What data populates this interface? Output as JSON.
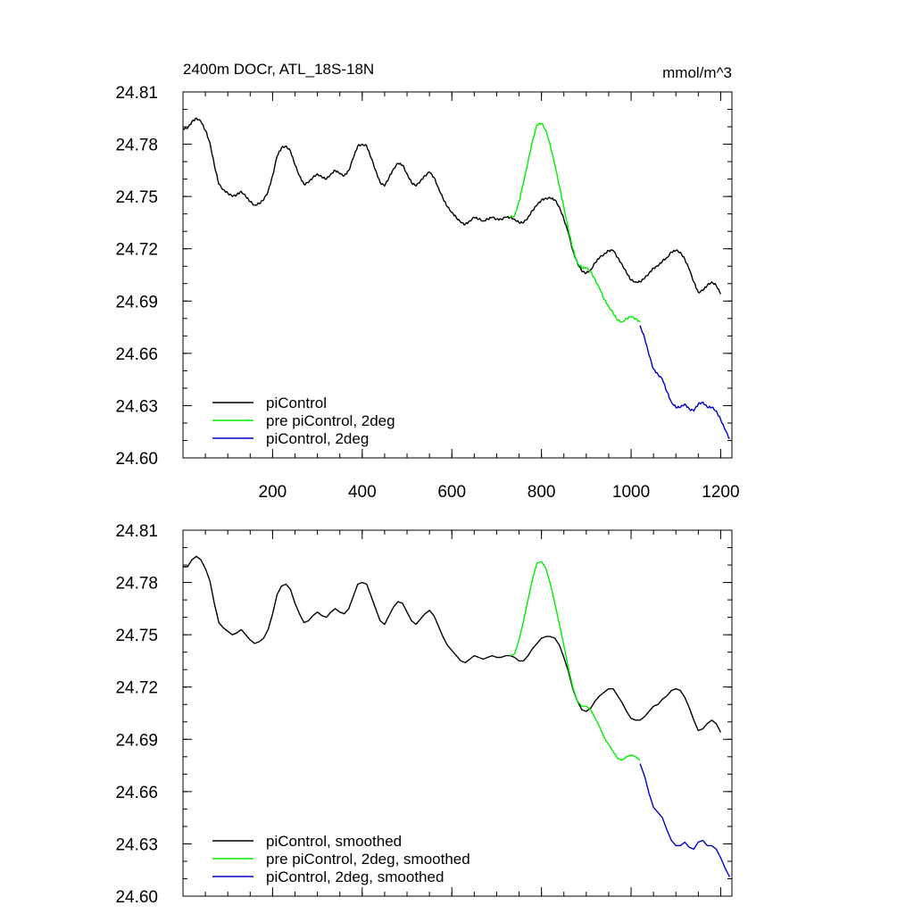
{
  "figure": {
    "title": "2400m DOCr, ATL_18S-18N",
    "units": "mmol/m^3"
  },
  "chart_data": [
    {
      "type": "line",
      "panel": "top",
      "title": "2400m DOCr, ATL_18S-18N",
      "units": "mmol/m^3",
      "xlim": [
        0,
        1225
      ],
      "ylim": [
        24.6,
        24.81
      ],
      "xticks": [
        200,
        400,
        600,
        800,
        1000,
        1200
      ],
      "yticks": [
        24.6,
        24.63,
        24.66,
        24.69,
        24.72,
        24.75,
        24.78,
        24.81
      ],
      "ytick_labels": [
        "24.60",
        "24.63",
        "24.66",
        "24.69",
        "24.72",
        "24.75",
        "24.78",
        "24.81"
      ],
      "xtick_labels": [
        "200",
        "400",
        "600",
        "800",
        "1000",
        "1200"
      ],
      "show_xtick_labels": true,
      "legend": {
        "placement": "bottom-left"
      },
      "series": [
        {
          "name": "piControl",
          "color": "#000000",
          "x": [
            0,
            10,
            20,
            30,
            40,
            50,
            60,
            70,
            80,
            90,
            100,
            110,
            120,
            130,
            140,
            150,
            160,
            170,
            180,
            190,
            200,
            210,
            220,
            230,
            240,
            250,
            260,
            270,
            280,
            290,
            300,
            310,
            320,
            330,
            340,
            350,
            360,
            370,
            380,
            390,
            400,
            410,
            420,
            430,
            440,
            450,
            460,
            470,
            480,
            490,
            500,
            510,
            520,
            530,
            540,
            550,
            560,
            570,
            580,
            590,
            600,
            610,
            620,
            630,
            640,
            650,
            660,
            670,
            680,
            690,
            700,
            710,
            720,
            730,
            740,
            750,
            760,
            770,
            780,
            790,
            800,
            810,
            820,
            830,
            840,
            850,
            860,
            870,
            880,
            890,
            900,
            910,
            920,
            930,
            940,
            950,
            960,
            970,
            980,
            990,
            1000,
            1010,
            1020,
            1030,
            1040,
            1050,
            1060,
            1070,
            1080,
            1090,
            1100,
            1110,
            1120,
            1130,
            1140,
            1150,
            1160,
            1170,
            1180,
            1190,
            1200
          ],
          "values": [
            24.789,
            24.789,
            24.793,
            24.795,
            24.793,
            24.788,
            24.781,
            24.768,
            24.757,
            24.754,
            24.752,
            24.75,
            24.751,
            24.753,
            24.75,
            24.747,
            24.745,
            24.746,
            24.748,
            24.753,
            24.762,
            24.773,
            24.778,
            24.779,
            24.776,
            24.768,
            24.762,
            24.757,
            24.758,
            24.761,
            24.763,
            24.761,
            24.76,
            24.763,
            24.765,
            24.763,
            24.762,
            24.765,
            24.772,
            24.779,
            24.78,
            24.779,
            24.772,
            24.765,
            24.758,
            24.756,
            24.761,
            24.766,
            24.769,
            24.768,
            24.763,
            24.758,
            24.756,
            24.759,
            24.762,
            24.764,
            24.761,
            24.755,
            24.749,
            24.744,
            24.741,
            24.738,
            24.735,
            24.734,
            24.736,
            24.738,
            24.737,
            24.736,
            24.737,
            24.738,
            24.737,
            24.737,
            24.738,
            24.738,
            24.737,
            24.735,
            24.735,
            24.738,
            24.742,
            24.745,
            24.748,
            24.749,
            24.749,
            24.748,
            24.744,
            24.737,
            24.729,
            24.719,
            24.712,
            24.707,
            24.706,
            24.708,
            24.712,
            24.715,
            24.717,
            24.719,
            24.719,
            24.715,
            24.711,
            24.706,
            24.702,
            24.701,
            24.701,
            24.703,
            24.706,
            24.709,
            24.71,
            24.713,
            24.715,
            24.718,
            24.719,
            24.718,
            24.714,
            24.708,
            24.701,
            24.695,
            24.696,
            24.699,
            24.701,
            24.699,
            24.694
          ]
        },
        {
          "name": "pre piControl, 2deg",
          "color": "#00ee00",
          "x": [
            730,
            740,
            750,
            760,
            770,
            780,
            790,
            800,
            810,
            820,
            830,
            840,
            850,
            860,
            870,
            880,
            890,
            900,
            910,
            920,
            930,
            940,
            950,
            960,
            970,
            980,
            990,
            1000,
            1010,
            1020
          ],
          "values": [
            24.738,
            24.739,
            24.747,
            24.758,
            24.77,
            24.782,
            24.791,
            24.792,
            24.788,
            24.779,
            24.768,
            24.756,
            24.744,
            24.731,
            24.72,
            24.712,
            24.709,
            24.709,
            24.707,
            24.702,
            24.697,
            24.691,
            24.687,
            24.683,
            24.679,
            24.678,
            24.68,
            24.681,
            24.68,
            24.678
          ]
        },
        {
          "name": "piControl, 2deg",
          "color": "#0000cc",
          "x": [
            1020,
            1030,
            1040,
            1050,
            1060,
            1070,
            1080,
            1090,
            1100,
            1110,
            1120,
            1130,
            1140,
            1150,
            1160,
            1170,
            1180,
            1190,
            1200,
            1210,
            1220
          ],
          "values": [
            24.676,
            24.669,
            24.659,
            24.651,
            24.648,
            24.645,
            24.638,
            24.632,
            24.629,
            24.629,
            24.631,
            24.628,
            24.627,
            24.631,
            24.632,
            24.629,
            24.629,
            24.627,
            24.622,
            24.616,
            24.611
          ]
        }
      ]
    },
    {
      "type": "line",
      "panel": "bottom",
      "title": "",
      "xlim": [
        0,
        1225
      ],
      "ylim": [
        24.6,
        24.81
      ],
      "xticks": [
        200,
        400,
        600,
        800,
        1000,
        1200
      ],
      "yticks": [
        24.6,
        24.63,
        24.66,
        24.69,
        24.72,
        24.75,
        24.78,
        24.81
      ],
      "ytick_labels": [
        "24.60",
        "24.63",
        "24.66",
        "24.69",
        "24.72",
        "24.75",
        "24.78",
        "24.81"
      ],
      "xtick_labels": [],
      "show_xtick_labels": false,
      "legend": {
        "placement": "bottom-left"
      },
      "series": [
        {
          "name": "piControl, smoothed",
          "color": "#000000",
          "x": [
            0,
            10,
            20,
            30,
            40,
            50,
            60,
            70,
            80,
            90,
            100,
            110,
            120,
            130,
            140,
            150,
            160,
            170,
            180,
            190,
            200,
            210,
            220,
            230,
            240,
            250,
            260,
            270,
            280,
            290,
            300,
            310,
            320,
            330,
            340,
            350,
            360,
            370,
            380,
            390,
            400,
            410,
            420,
            430,
            440,
            450,
            460,
            470,
            480,
            490,
            500,
            510,
            520,
            530,
            540,
            550,
            560,
            570,
            580,
            590,
            600,
            610,
            620,
            630,
            640,
            650,
            660,
            670,
            680,
            690,
            700,
            710,
            720,
            730,
            740,
            750,
            760,
            770,
            780,
            790,
            800,
            810,
            820,
            830,
            840,
            850,
            860,
            870,
            880,
            890,
            900,
            910,
            920,
            930,
            940,
            950,
            960,
            970,
            980,
            990,
            1000,
            1010,
            1020,
            1030,
            1040,
            1050,
            1060,
            1070,
            1080,
            1090,
            1100,
            1110,
            1120,
            1130,
            1140,
            1150,
            1160,
            1170,
            1180,
            1190,
            1200
          ],
          "values": [
            24.789,
            24.789,
            24.793,
            24.795,
            24.793,
            24.788,
            24.781,
            24.768,
            24.757,
            24.754,
            24.752,
            24.75,
            24.751,
            24.753,
            24.75,
            24.747,
            24.745,
            24.746,
            24.748,
            24.753,
            24.762,
            24.773,
            24.778,
            24.779,
            24.776,
            24.768,
            24.762,
            24.757,
            24.758,
            24.761,
            24.763,
            24.761,
            24.76,
            24.763,
            24.765,
            24.763,
            24.762,
            24.765,
            24.772,
            24.779,
            24.78,
            24.779,
            24.772,
            24.765,
            24.758,
            24.756,
            24.761,
            24.766,
            24.769,
            24.768,
            24.763,
            24.758,
            24.756,
            24.759,
            24.762,
            24.764,
            24.761,
            24.755,
            24.749,
            24.744,
            24.741,
            24.738,
            24.735,
            24.734,
            24.736,
            24.738,
            24.737,
            24.736,
            24.737,
            24.738,
            24.737,
            24.737,
            24.738,
            24.738,
            24.737,
            24.735,
            24.735,
            24.738,
            24.742,
            24.745,
            24.748,
            24.749,
            24.749,
            24.748,
            24.744,
            24.737,
            24.729,
            24.719,
            24.712,
            24.707,
            24.706,
            24.708,
            24.712,
            24.715,
            24.717,
            24.719,
            24.719,
            24.715,
            24.711,
            24.706,
            24.702,
            24.701,
            24.701,
            24.703,
            24.706,
            24.709,
            24.71,
            24.713,
            24.715,
            24.718,
            24.719,
            24.718,
            24.714,
            24.708,
            24.701,
            24.695,
            24.696,
            24.699,
            24.701,
            24.699,
            24.694
          ]
        },
        {
          "name": "pre piControl, 2deg, smoothed",
          "color": "#00ee00",
          "x": [
            730,
            740,
            750,
            760,
            770,
            780,
            790,
            800,
            810,
            820,
            830,
            840,
            850,
            860,
            870,
            880,
            890,
            900,
            910,
            920,
            930,
            940,
            950,
            960,
            970,
            980,
            990,
            1000,
            1010,
            1020
          ],
          "values": [
            24.738,
            24.739,
            24.747,
            24.758,
            24.77,
            24.782,
            24.791,
            24.792,
            24.788,
            24.779,
            24.768,
            24.756,
            24.744,
            24.731,
            24.72,
            24.712,
            24.709,
            24.709,
            24.707,
            24.702,
            24.697,
            24.691,
            24.687,
            24.683,
            24.679,
            24.678,
            24.68,
            24.681,
            24.68,
            24.678
          ]
        },
        {
          "name": "piControl, 2deg, smoothed",
          "color": "#0000cc",
          "x": [
            1020,
            1030,
            1040,
            1050,
            1060,
            1070,
            1080,
            1090,
            1100,
            1110,
            1120,
            1130,
            1140,
            1150,
            1160,
            1170,
            1180,
            1190,
            1200,
            1210,
            1220
          ],
          "values": [
            24.676,
            24.669,
            24.659,
            24.651,
            24.648,
            24.645,
            24.638,
            24.632,
            24.629,
            24.629,
            24.631,
            24.628,
            24.627,
            24.631,
            24.632,
            24.629,
            24.629,
            24.627,
            24.622,
            24.616,
            24.611
          ]
        }
      ]
    }
  ]
}
